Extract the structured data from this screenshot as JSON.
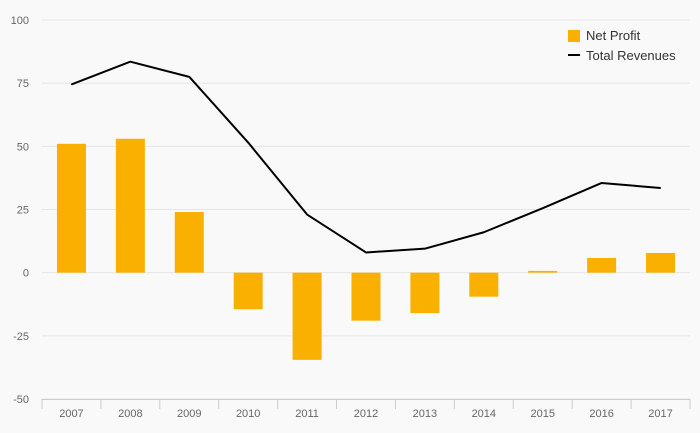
{
  "chart_data": {
    "type": "bar",
    "categories": [
      "2007",
      "2008",
      "2009",
      "2010",
      "2011",
      "2012",
      "2013",
      "2014",
      "2015",
      "2016",
      "2017"
    ],
    "series": [
      {
        "name": "Net Profit",
        "type": "bar",
        "color": "#f9b000",
        "values": [
          51,
          53,
          24,
          -14.5,
          -34.5,
          -19,
          -16,
          -9.5,
          0.7,
          5.8,
          7.8
        ]
      },
      {
        "name": "Total Revenues",
        "type": "line",
        "color": "#000000",
        "values": [
          74.5,
          83.5,
          77.5,
          51.5,
          23,
          8,
          9.5,
          16,
          25.5,
          35.5,
          33.5
        ]
      }
    ],
    "y_ticks": [
      "100",
      "75",
      "50",
      "25",
      "0",
      "-25",
      "-50"
    ],
    "ylim": [
      -50,
      100
    ],
    "grid": true,
    "legend_position": "top-right",
    "title": "",
    "xlabel": "",
    "ylabel": ""
  }
}
